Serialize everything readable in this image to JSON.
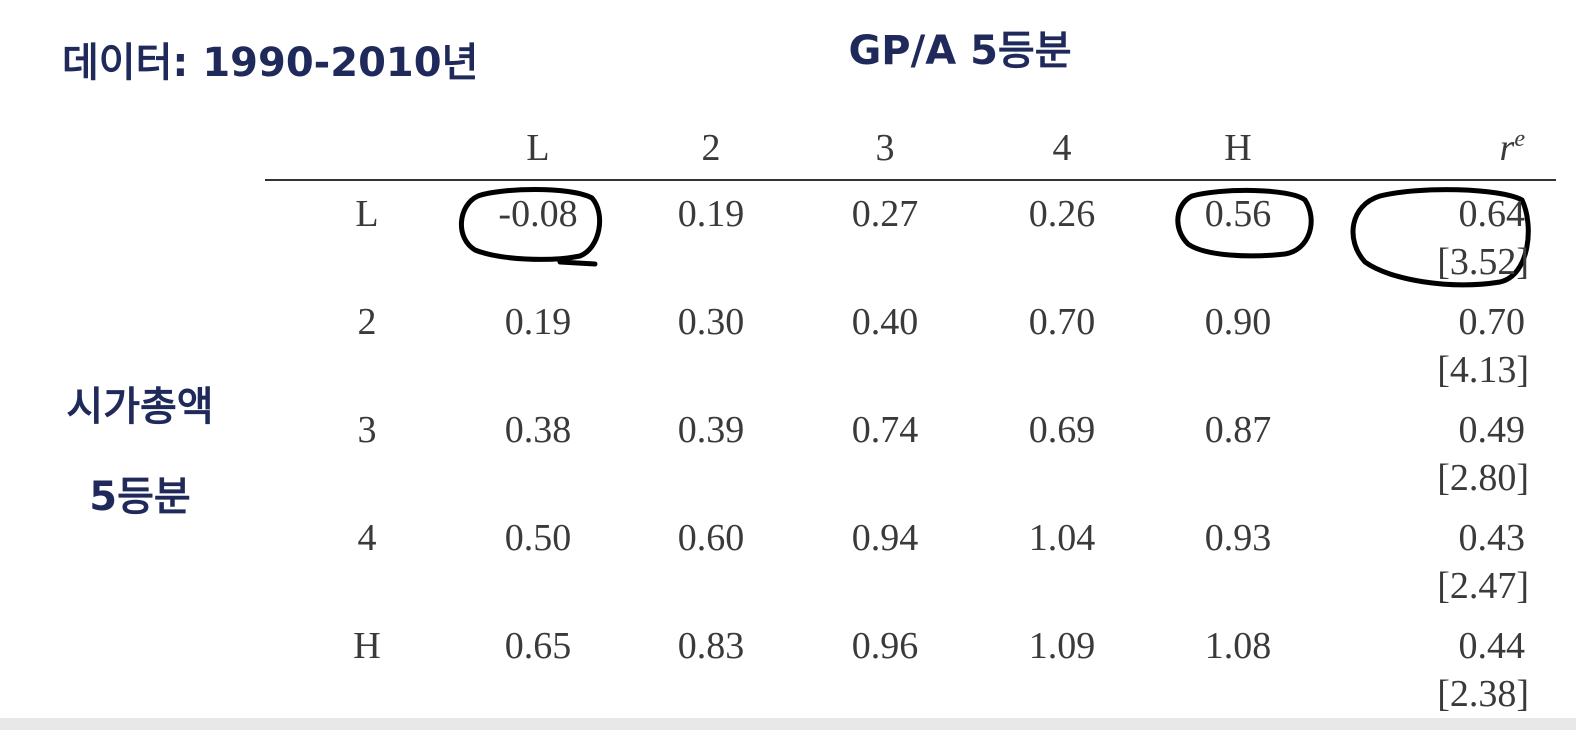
{
  "header": {
    "title": "데이터: 1990-2010년",
    "column_title": "GP/A 5등분"
  },
  "row_title": {
    "line1": "시가총액",
    "line2": "5등분"
  },
  "table": {
    "columns": [
      "L",
      "2",
      "3",
      "4",
      "H"
    ],
    "last_column": {
      "base": "r",
      "sup": "e"
    },
    "rows": [
      {
        "label": "L",
        "values": [
          "-0.08",
          "0.19",
          "0.27",
          "0.26",
          "0.56"
        ],
        "re": "0.64",
        "t": "[3.52]"
      },
      {
        "label": "2",
        "values": [
          "0.19",
          "0.30",
          "0.40",
          "0.70",
          "0.90"
        ],
        "re": "0.70",
        "t": "[4.13]"
      },
      {
        "label": "3",
        "values": [
          "0.38",
          "0.39",
          "0.74",
          "0.69",
          "0.87"
        ],
        "re": "0.49",
        "t": "[2.80]"
      },
      {
        "label": "4",
        "values": [
          "0.50",
          "0.60",
          "0.94",
          "1.04",
          "0.93"
        ],
        "re": "0.43",
        "t": "[2.47]"
      },
      {
        "label": "H",
        "values": [
          "0.65",
          "0.83",
          "0.96",
          "1.09",
          "1.08"
        ],
        "re": "0.44",
        "t": "[2.38]"
      }
    ]
  }
}
